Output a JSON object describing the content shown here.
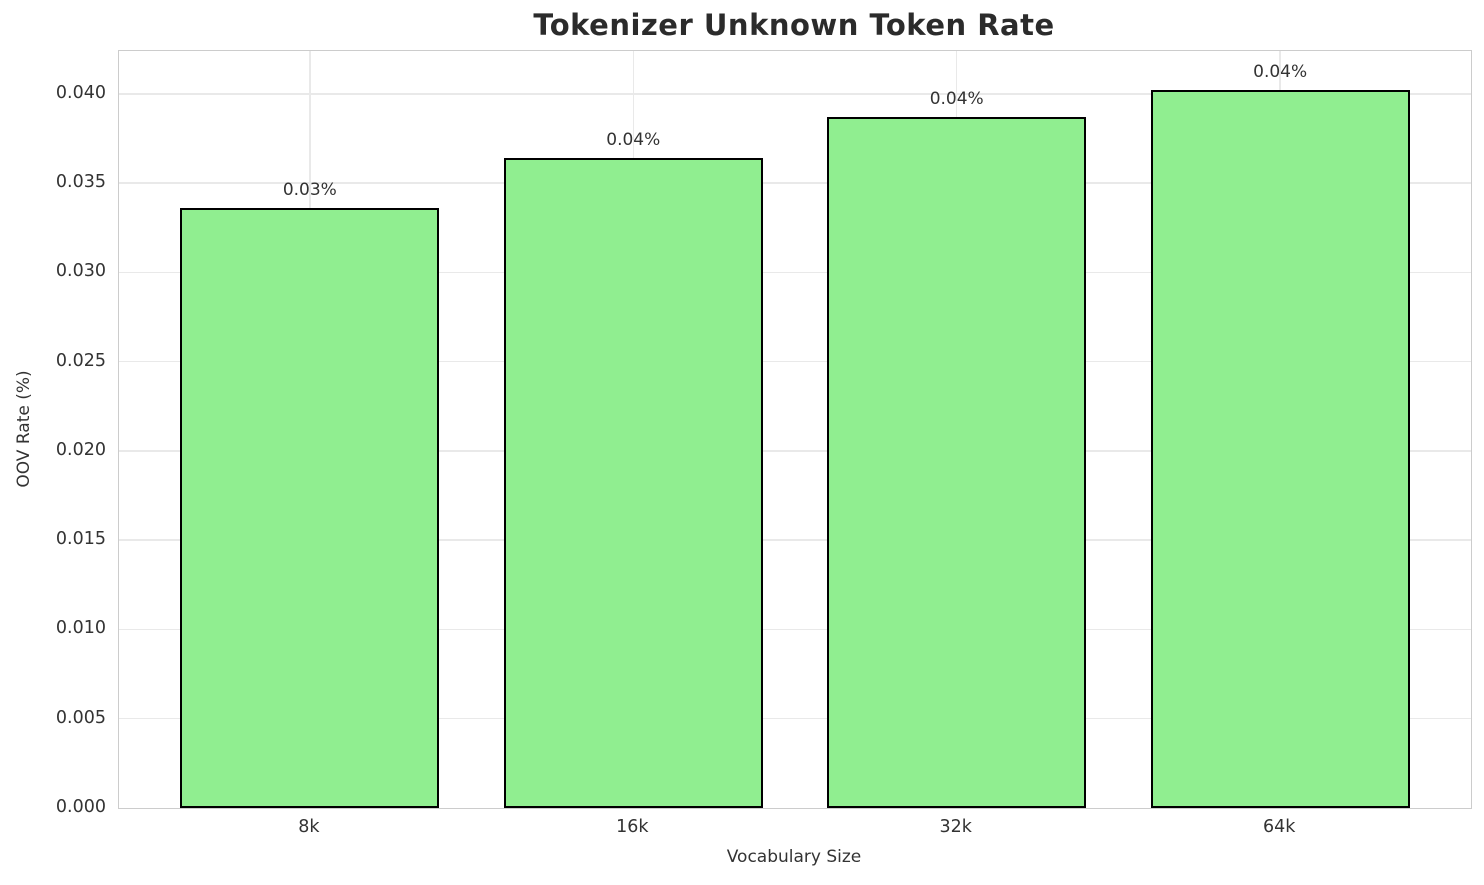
{
  "chart_data": {
    "type": "bar",
    "title": "Tokenizer Unknown Token Rate",
    "xlabel": "Vocabulary Size",
    "ylabel": "OOV Rate (%)",
    "categories": [
      "8k",
      "16k",
      "32k",
      "64k"
    ],
    "values": [
      0.0336,
      0.0364,
      0.0387,
      0.0402
    ],
    "bar_labels": [
      "0.03%",
      "0.04%",
      "0.04%",
      "0.04%"
    ],
    "ylim": [
      0,
      0.0424
    ],
    "yticks": [
      0,
      0.005,
      0.01,
      0.015,
      0.02,
      0.025,
      0.03,
      0.035,
      0.04
    ],
    "ytick_labels": [
      "0.000",
      "0.005",
      "0.010",
      "0.015",
      "0.020",
      "0.025",
      "0.030",
      "0.035",
      "0.040"
    ],
    "grid": true,
    "legend": "none",
    "colors": {
      "bar_fill": "#90EE90",
      "bar_edge": "#000000",
      "grid_line": "#e9e9e9",
      "spine": "#cccccc",
      "title_text": "#2b2b2b",
      "tick_text": "#333333"
    }
  }
}
